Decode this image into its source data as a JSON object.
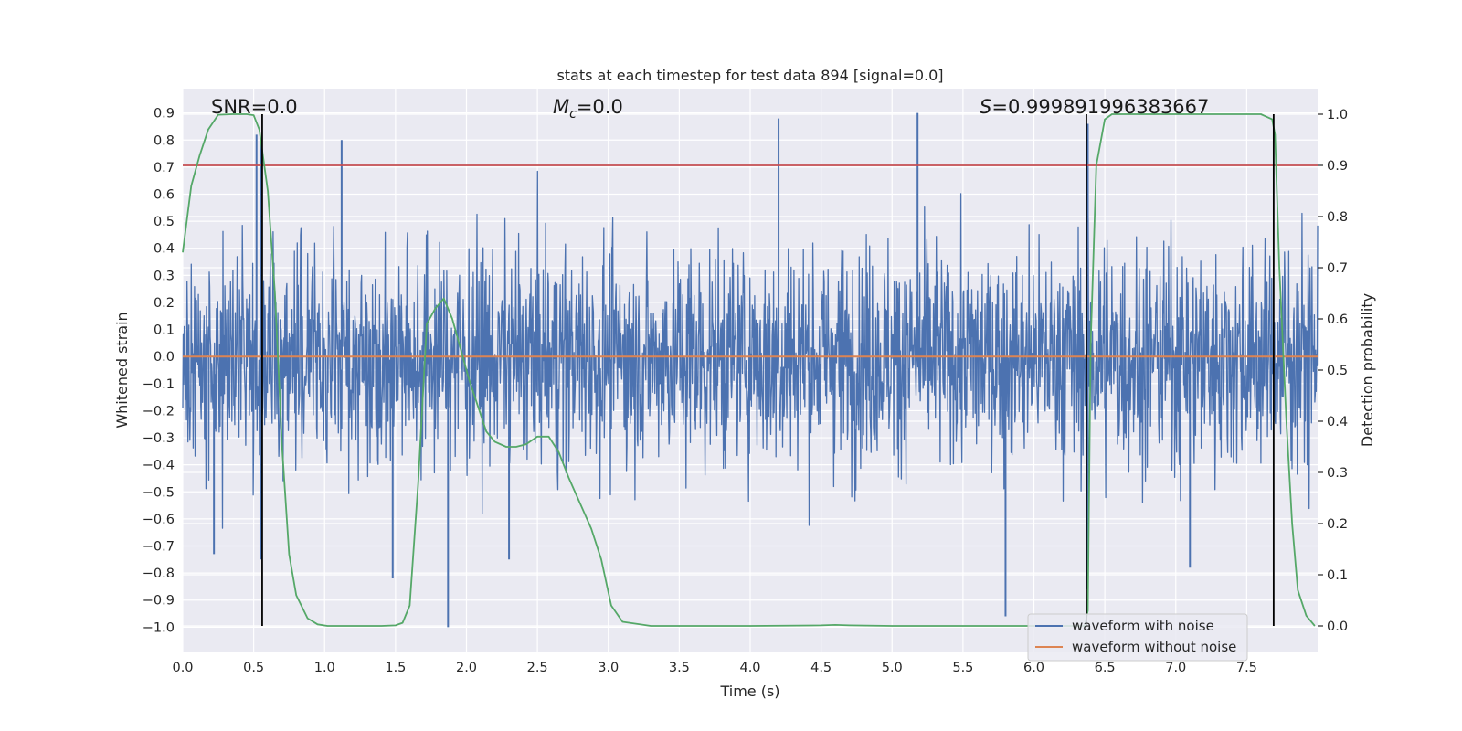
{
  "chart_data": {
    "type": "line",
    "title": "stats at each timestep for test data 894 [signal=0.0]",
    "xlabel": "Time (s)",
    "ylabel": "Whitened strain",
    "y2label": "Detection probability",
    "xlim": [
      0.0,
      8.0
    ],
    "ylim": [
      -1.09,
      0.99
    ],
    "y2lim": [
      -0.05,
      1.05
    ],
    "xticks": [
      0.0,
      0.5,
      1.0,
      1.5,
      2.0,
      2.5,
      3.0,
      3.5,
      4.0,
      4.5,
      5.0,
      5.5,
      6.0,
      6.5,
      7.0,
      7.5
    ],
    "xtick_labels": [
      "0.0",
      "0.5",
      "1.0",
      "1.5",
      "2.0",
      "2.5",
      "3.0",
      "3.5",
      "4.0",
      "4.5",
      "5.0",
      "5.5",
      "6.0",
      "6.5",
      "7.0",
      "7.5"
    ],
    "yticks": [
      0.9,
      0.8,
      0.7,
      0.6,
      0.5,
      0.4,
      0.3,
      0.2,
      0.1,
      0.0,
      -0.1,
      -0.2,
      -0.3,
      -0.4,
      -0.5,
      -0.6,
      -0.7,
      -0.8,
      -0.9,
      -1.0
    ],
    "ytick_labels": [
      "0.9",
      "0.8",
      "0.7",
      "0.6",
      "0.5",
      "0.4",
      "0.3",
      "0.2",
      "0.1",
      "0.0",
      "−0.1",
      "−0.2",
      "−0.3",
      "−0.4",
      "−0.5",
      "−0.6",
      "−0.7",
      "−0.8",
      "−0.9",
      "−1.0"
    ],
    "y2ticks": [
      1.0,
      0.9,
      0.8,
      0.7,
      0.6,
      0.5,
      0.4,
      0.3,
      0.2,
      0.1,
      0.0
    ],
    "y2tick_labels": [
      "1.0",
      "0.9",
      "0.8",
      "0.7",
      "0.6",
      "0.5",
      "0.4",
      "0.3",
      "0.2",
      "0.1",
      "0.0"
    ],
    "grid": true,
    "legend_position": "bottom-right",
    "annotations": {
      "snr_label": "SNR=0.0",
      "mc_var": "M",
      "mc_sub": "c",
      "mc_value": "=0.0",
      "s_var": "S",
      "s_value": "=0.999891996383667"
    },
    "colors": {
      "noise": "#4c72b0",
      "clean": "#dd8452",
      "probability": "#55a868",
      "threshold": "#c44e52",
      "marker": "#000000",
      "background": "#eaeaf2",
      "grid": "#ffffff"
    },
    "series": [
      {
        "name": "waveform with noise",
        "axis": "left",
        "style": "noise",
        "mean": 0.0,
        "std": 0.2,
        "seed": 894,
        "n_points": 2400,
        "extremes": [
          {
            "x": 0.52,
            "y": 0.82
          },
          {
            "x": 0.55,
            "y": 0.79
          },
          {
            "x": 1.12,
            "y": 0.8
          },
          {
            "x": 4.2,
            "y": 0.88
          },
          {
            "x": 5.18,
            "y": 0.9
          },
          {
            "x": 6.38,
            "y": 0.86
          },
          {
            "x": 1.87,
            "y": -1.0
          },
          {
            "x": 1.48,
            "y": -0.82
          },
          {
            "x": 5.8,
            "y": -0.96
          },
          {
            "x": 6.38,
            "y": -0.86
          },
          {
            "x": 0.22,
            "y": -0.73
          },
          {
            "x": 2.3,
            "y": -0.75
          },
          {
            "x": 7.1,
            "y": -0.78
          },
          {
            "x": 0.55,
            "y": -0.75
          }
        ]
      },
      {
        "name": "waveform without noise",
        "axis": "left",
        "style": "line",
        "x": [
          0.0,
          8.0
        ],
        "y": [
          0.0,
          0.0
        ]
      },
      {
        "name": "detection probability",
        "axis": "right",
        "style": "line",
        "x": [
          0.0,
          0.06,
          0.12,
          0.18,
          0.25,
          0.35,
          0.45,
          0.5,
          0.54,
          0.56,
          0.6,
          0.65,
          0.7,
          0.75,
          0.8,
          0.88,
          0.95,
          1.02,
          1.1,
          1.2,
          1.4,
          1.5,
          1.55,
          1.6,
          1.66,
          1.72,
          1.78,
          1.84,
          1.9,
          1.96,
          2.02,
          2.08,
          2.14,
          2.2,
          2.28,
          2.35,
          2.42,
          2.5,
          2.58,
          2.65,
          2.72,
          2.8,
          2.88,
          2.95,
          3.02,
          3.1,
          3.3,
          3.6,
          4.0,
          4.5,
          4.6,
          4.7,
          5.0,
          5.5,
          6.0,
          6.3,
          6.36,
          6.38,
          6.4,
          6.44,
          6.5,
          6.55,
          6.7,
          7.0,
          7.3,
          7.6,
          7.68,
          7.7,
          7.73,
          7.78,
          7.82,
          7.86,
          7.92,
          7.98
        ],
        "y": [
          0.73,
          0.86,
          0.92,
          0.97,
          0.999,
          1.0,
          1.0,
          0.998,
          0.97,
          0.93,
          0.85,
          0.65,
          0.35,
          0.14,
          0.06,
          0.015,
          0.003,
          0.0,
          0.0,
          0.0,
          0.0,
          0.001,
          0.006,
          0.04,
          0.28,
          0.59,
          0.62,
          0.64,
          0.6,
          0.54,
          0.48,
          0.43,
          0.38,
          0.36,
          0.35,
          0.35,
          0.355,
          0.37,
          0.37,
          0.34,
          0.29,
          0.24,
          0.19,
          0.13,
          0.04,
          0.008,
          0.0,
          0.0,
          0.0,
          0.001,
          0.002,
          0.001,
          0.0,
          0.0,
          0.0,
          0.0,
          0.0,
          0.03,
          0.55,
          0.9,
          0.99,
          1.0,
          1.0,
          1.0,
          1.0,
          1.0,
          0.99,
          0.96,
          0.7,
          0.4,
          0.2,
          0.07,
          0.02,
          0.0
        ]
      }
    ],
    "threshold_line": {
      "axis": "right",
      "y": 0.9
    },
    "vertical_markers": [
      0.56,
      6.37,
      7.69
    ]
  }
}
